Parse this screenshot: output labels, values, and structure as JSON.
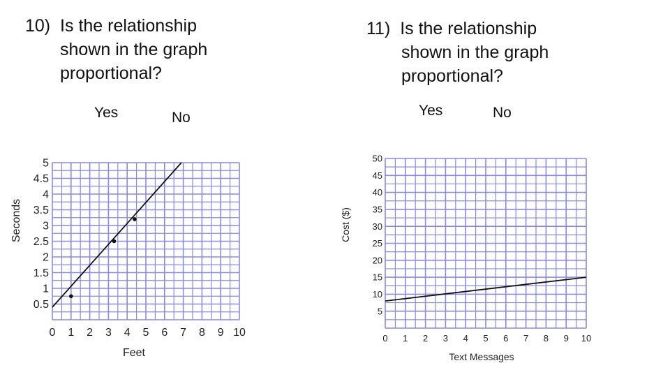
{
  "questions": [
    {
      "number": "10)",
      "line1": "Is the relationship",
      "line2": "shown in the graph",
      "line3": "proportional?",
      "yes": "Yes",
      "no": "No"
    },
    {
      "number": "11)",
      "line1": "Is the relationship",
      "line2": "shown in the graph",
      "line3": "proportional?",
      "yes": "Yes",
      "no": "No"
    }
  ],
  "chart_data": [
    {
      "type": "line",
      "xlabel": "Feet",
      "ylabel": "Seconds",
      "xlim": [
        0,
        10
      ],
      "ylim": [
        0,
        5
      ],
      "x_ticks": [
        "0",
        "1",
        "2",
        "3",
        "4",
        "5",
        "6",
        "7",
        "8",
        "9",
        "10"
      ],
      "y_ticks": [
        "0.5",
        "1",
        "1.5",
        "2",
        "2.5",
        "3",
        "3.5",
        "4",
        "4.5",
        "5"
      ],
      "grid": true,
      "series": [
        {
          "x": [
            0,
            6.9
          ],
          "y": [
            0.4,
            5.0
          ],
          "color": "#111111"
        }
      ],
      "points": {
        "x": [
          1,
          3.3,
          4.4
        ],
        "y": [
          0.75,
          2.5,
          3.2
        ]
      }
    },
    {
      "type": "line",
      "xlabel": "Text Messages",
      "ylabel": "Cost ($)",
      "xlim": [
        0,
        10
      ],
      "ylim": [
        0,
        50
      ],
      "x_ticks": [
        "0",
        "1",
        "2",
        "3",
        "4",
        "5",
        "6",
        "7",
        "8",
        "9",
        "10"
      ],
      "y_ticks": [
        "5",
        "10",
        "15",
        "20",
        "25",
        "30",
        "35",
        "40",
        "45",
        "50"
      ],
      "grid": true,
      "series": [
        {
          "x": [
            0,
            10
          ],
          "y": [
            8,
            15
          ],
          "color": "#111111"
        }
      ]
    }
  ]
}
